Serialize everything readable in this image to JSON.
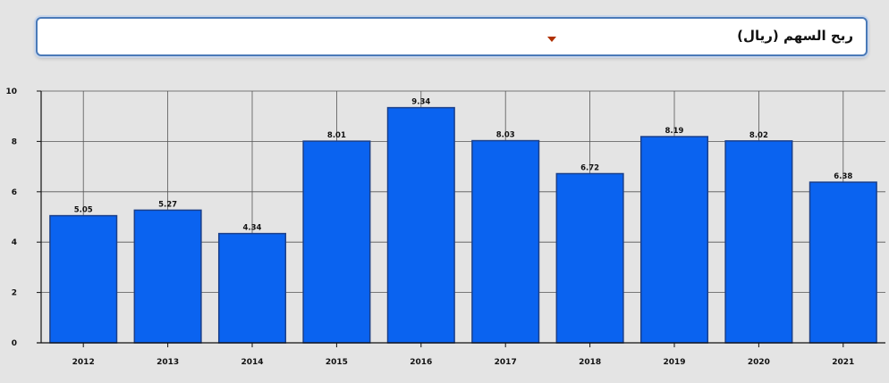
{
  "selector": {
    "label": "ربح السهم (ريال)",
    "caret_icon": "caret-down-icon"
  },
  "chart_data": {
    "type": "bar",
    "categories": [
      "2012",
      "2013",
      "2014",
      "2015",
      "2016",
      "2017",
      "2018",
      "2019",
      "2020",
      "2021"
    ],
    "values": [
      5.05,
      5.27,
      4.34,
      8.01,
      9.34,
      8.03,
      6.72,
      8.19,
      8.02,
      6.38
    ],
    "data_labels": [
      "5.05",
      "5.27",
      "4.34",
      "8.01",
      "9.34",
      "8.03",
      "6.72",
      "8.19",
      "8.02",
      "6.38"
    ],
    "yticks": [
      "0",
      "2",
      "4",
      "6",
      "8",
      "10"
    ],
    "ylim": [
      0,
      10
    ],
    "grid": true,
    "colors": {
      "bar": "#0a63f0",
      "bar_edge": "#1a3f8a",
      "grid": "#555555",
      "axis": "#111111"
    }
  }
}
